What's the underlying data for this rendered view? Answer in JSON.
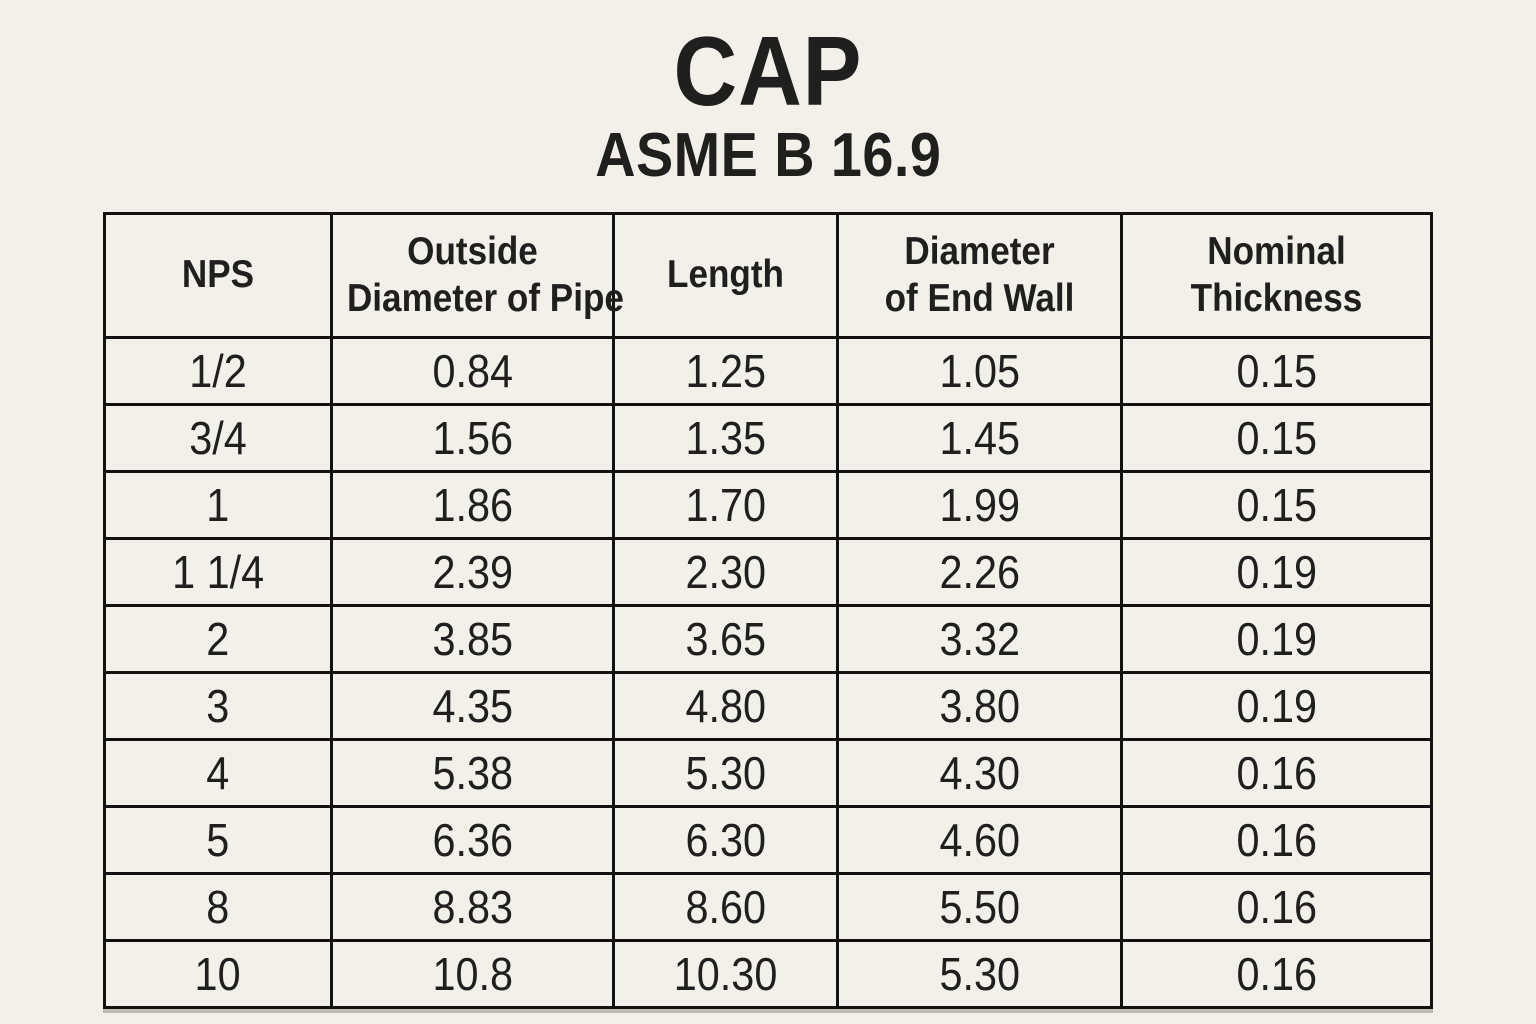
{
  "chart_data": {
    "type": "table",
    "title": "CAP",
    "subtitle": "ASME B 16.9",
    "columns": [
      {
        "key": "nps",
        "label": "NPS",
        "lines": [
          "NPS"
        ]
      },
      {
        "key": "outside-diameter-of-pipe",
        "label": "Outside Diameter of Pipe",
        "lines": [
          "Outside",
          "Diameter of Pipe"
        ]
      },
      {
        "key": "length",
        "label": "Length",
        "lines": [
          "Length"
        ]
      },
      {
        "key": "diameter-of-end-wall",
        "label": "Diameter of End Wall",
        "lines": [
          "Diameter",
          "of End Wall"
        ]
      },
      {
        "key": "nominal-thickness",
        "label": "Nominal Thickness",
        "lines": [
          "Nominal",
          "Thickness"
        ]
      }
    ],
    "rows": [
      [
        "1/2",
        "0.84",
        "1.25",
        "1.05",
        "0.15"
      ],
      [
        "3/4",
        "1.56",
        "1.35",
        "1.45",
        "0.15"
      ],
      [
        "1",
        "1.86",
        "1.70",
        "1.99",
        "0.15"
      ],
      [
        "1 1/4",
        "2.39",
        "2.30",
        "2.26",
        "0.19"
      ],
      [
        "2",
        "3.85",
        "3.65",
        "3.32",
        "0.19"
      ],
      [
        "3",
        "4.35",
        "4.80",
        "3.80",
        "0.19"
      ],
      [
        "4",
        "5.38",
        "5.30",
        "4.30",
        "0.16"
      ],
      [
        "5",
        "6.36",
        "6.30",
        "4.60",
        "0.16"
      ],
      [
        "8",
        "8.83",
        "8.60",
        "5.50",
        "0.16"
      ],
      [
        "10",
        "10.8",
        "10.30",
        "5.30",
        "0.16"
      ]
    ]
  },
  "colors": {
    "background": "#f3f0ea",
    "text": "#1f1f1d",
    "border": "#121210"
  }
}
